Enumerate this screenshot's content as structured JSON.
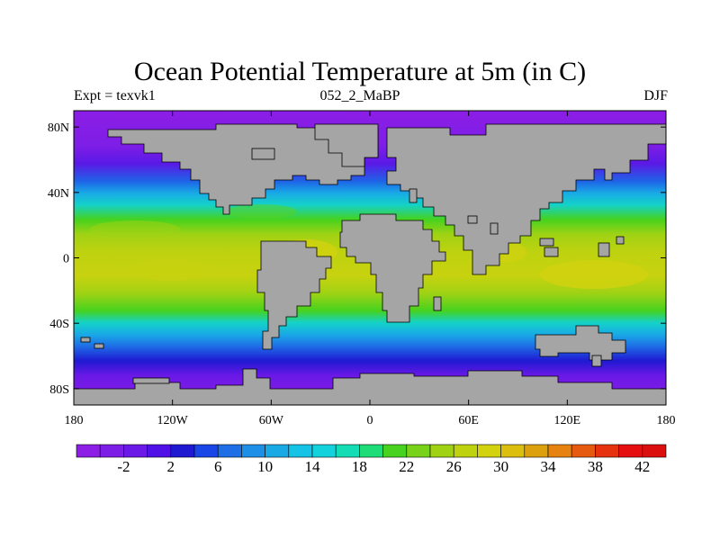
{
  "title": "Ocean Potential Temperature at 5m (in C)",
  "subtitle_left": "Expt = texvk1",
  "subtitle_center": "052_2_MaBP",
  "subtitle_right": "DJF",
  "map": {
    "extent": {
      "lon": [
        -180,
        180
      ],
      "lat": [
        -90,
        90
      ]
    },
    "x_ticks": [
      {
        "value": -180,
        "label": "180"
      },
      {
        "value": -120,
        "label": "120W"
      },
      {
        "value": -60,
        "label": "60W"
      },
      {
        "value": 0,
        "label": "0"
      },
      {
        "value": 60,
        "label": "60E"
      },
      {
        "value": 120,
        "label": "120E"
      },
      {
        "value": 180,
        "label": "180"
      }
    ],
    "y_ticks": [
      {
        "value": 80,
        "label": "80N"
      },
      {
        "value": 40,
        "label": "40N"
      },
      {
        "value": 0,
        "label": "0"
      },
      {
        "value": -40,
        "label": "40S"
      },
      {
        "value": -80,
        "label": "80S"
      }
    ],
    "land_color": "#a5a5a5",
    "frame_color": "#000000"
  },
  "colorbar": {
    "levels": [
      -6,
      -4,
      -2,
      0,
      2,
      4,
      6,
      8,
      10,
      12,
      14,
      16,
      18,
      20,
      22,
      24,
      26,
      28,
      30,
      32,
      34,
      36,
      38,
      40,
      42,
      44
    ],
    "labels": [
      "-2",
      "2",
      "6",
      "10",
      "14",
      "18",
      "22",
      "26",
      "30",
      "34",
      "38",
      "42"
    ],
    "colors": [
      "#8c1ee6",
      "#7d1ee6",
      "#6a19e6",
      "#5011e6",
      "#1f19d2",
      "#1946e6",
      "#1e6ee6",
      "#1e8fe6",
      "#19aae6",
      "#14c3e6",
      "#14d2dc",
      "#14dcb4",
      "#1edc78",
      "#46d21e",
      "#78d219",
      "#a0d214",
      "#bed20f",
      "#d2d20f",
      "#dcbe0f",
      "#dca00f",
      "#e6820f",
      "#e65a0f",
      "#e6320f",
      "#e60f0f",
      "#dc0f0f"
    ]
  }
}
